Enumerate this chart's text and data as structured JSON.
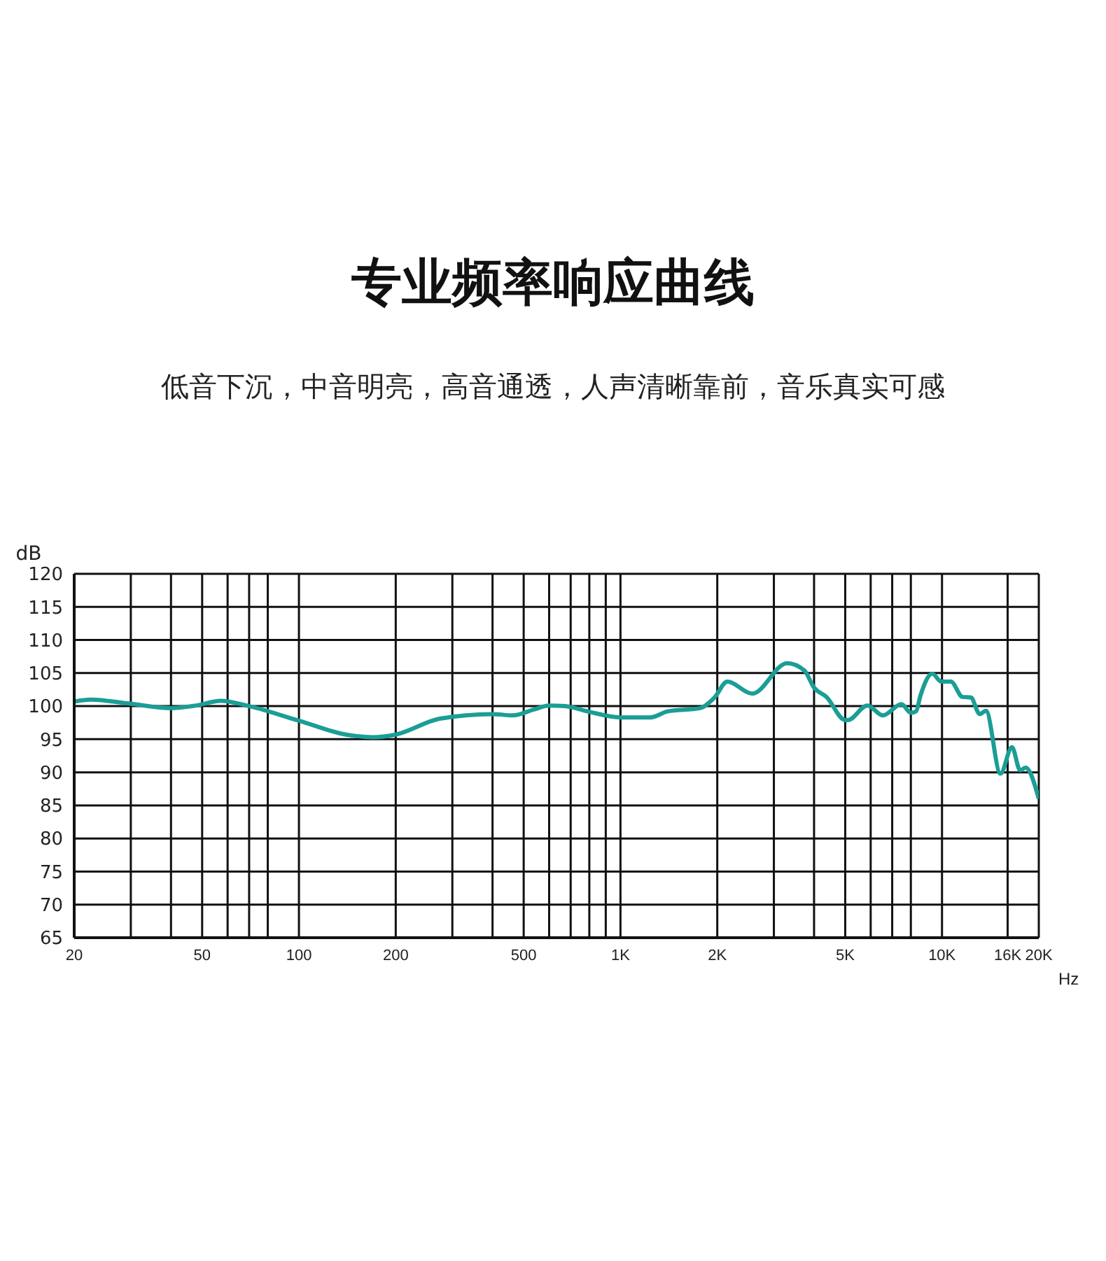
{
  "chart_data": {
    "type": "line",
    "title": "专业频率响应曲线",
    "subtitle": "低音下沉，中音明亮，高音通透，人声清晰靠前，音乐真实可感",
    "xlabel": "Hz",
    "ylabel": "dB",
    "log": "x",
    "grid": true,
    "marker": "none",
    "line_style": "solid",
    "legend": false,
    "xlim": [
      20,
      20000
    ],
    "ylim": [
      65,
      120
    ],
    "xticks": [
      20,
      {
        "value": 30,
        "label": null
      },
      {
        "value": 40,
        "label": null
      },
      50,
      {
        "value": 60,
        "label": null
      },
      {
        "value": 70,
        "label": null
      },
      {
        "value": 80,
        "label": null
      },
      100,
      200,
      {
        "value": 300,
        "label": null
      },
      {
        "value": 400,
        "label": null
      },
      500,
      {
        "value": 600,
        "label": null
      },
      {
        "value": 700,
        "label": null
      },
      {
        "value": 800,
        "label": null
      },
      {
        "value": 900,
        "label": null
      },
      {
        "value": 1000,
        "label": "1K"
      },
      {
        "value": 2000,
        "label": "2K"
      },
      {
        "value": 3000,
        "label": null
      },
      {
        "value": 4000,
        "label": null
      },
      {
        "value": 5000,
        "label": "5K"
      },
      {
        "value": 6000,
        "label": null
      },
      {
        "value": 7000,
        "label": null
      },
      {
        "value": 8000,
        "label": null
      },
      {
        "value": 10000,
        "label": "10K"
      },
      {
        "value": 16000,
        "label": "16K"
      },
      {
        "value": 20000,
        "label": "20K"
      }
    ],
    "yticks": [
      65,
      70,
      75,
      80,
      85,
      90,
      95,
      100,
      105,
      110,
      115,
      120
    ],
    "x": [
      20,
      22.5,
      29.5,
      40,
      48,
      57,
      70,
      100,
      140,
      170,
      200,
      274,
      400,
      463,
      538,
      600,
      672,
      790,
      1000,
      1240,
      1400,
      1770,
      1960,
      2150,
      2570,
      3300,
      3730,
      4000,
      4370,
      5000,
      5100,
      5860,
      6550,
      7480,
      8000,
      8300,
      8570,
      9330,
      9950,
      10650,
      11570,
      12300,
      13100,
      13700,
      15200,
      16500,
      17500,
      18200,
      20000
    ],
    "series": [
      {
        "color": "#1a9e96",
        "values": [
          100.7,
          101.0,
          100.4,
          99.7,
          100.1,
          100.8,
          100.0,
          97.8,
          95.7,
          95.3,
          95.7,
          98.1,
          98.8,
          98.6,
          99.5,
          100.1,
          100.0,
          99.2,
          98.3,
          98.3,
          99.2,
          99.7,
          101.3,
          103.7,
          101.9,
          106.5,
          105.4,
          102.8,
          101.4,
          97.9,
          97.9,
          100.1,
          98.6,
          100.3,
          99.0,
          99.2,
          101.6,
          104.9,
          103.7,
          103.7,
          101.4,
          101.3,
          98.8,
          99.3,
          89.8,
          93.8,
          90.3,
          90.7,
          86.0
        ]
      }
    ]
  }
}
